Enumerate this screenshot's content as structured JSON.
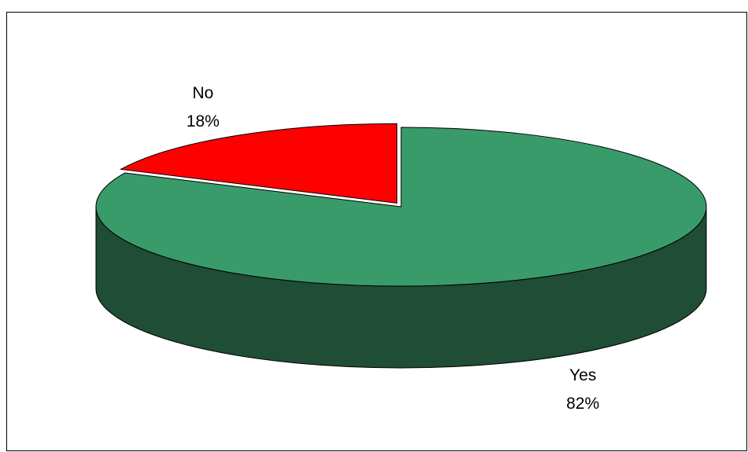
{
  "chart_data": {
    "type": "pie",
    "style": "3d",
    "slices": [
      {
        "label": "Yes",
        "value": 82,
        "value_label": "82%",
        "color": "#3a9b6a",
        "side_color": "#1f4d35"
      },
      {
        "label": "No",
        "value": 18,
        "value_label": "18%",
        "color": "#ff0000",
        "side_color": "#a00000",
        "exploded": true
      }
    ],
    "legend": "none",
    "border_color": "#000000"
  }
}
